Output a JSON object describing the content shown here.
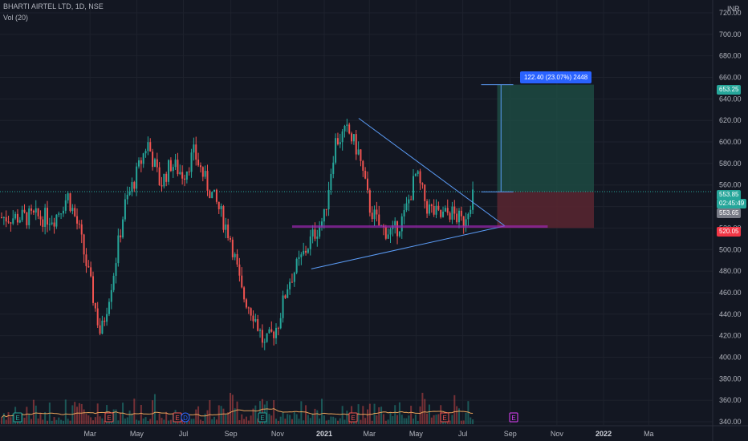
{
  "header": {
    "symbol": "BHARTI AIRTEL LTD, 1D, NSE",
    "indicator": "Vol (20)",
    "currency": "INR"
  },
  "price_axis": {
    "ticks": [
      "720.00",
      "700.00",
      "680.00",
      "660.00",
      "640.00",
      "620.00",
      "600.00",
      "580.00",
      "560.00",
      "540.00",
      "520.00",
      "500.00",
      "480.00",
      "460.00",
      "440.00",
      "420.00",
      "400.00",
      "380.00",
      "360.00",
      "340.00"
    ]
  },
  "time_axis": {
    "labels": [
      "Mar",
      "May",
      "Jul",
      "Sep",
      "Nov",
      "2021",
      "Mar",
      "May",
      "Jul",
      "Sep",
      "Nov",
      "2022",
      "Ma"
    ]
  },
  "badges": {
    "target_price": "653.25",
    "current_price": "553.85",
    "countdown": "02:45:49",
    "entry_price": "553.65",
    "stop_price": "520.05",
    "measure_tip": "122.40 (23.07%) 2448"
  },
  "event_markers": [
    "E",
    "E",
    "E",
    "D",
    "E",
    "E",
    "E",
    "E"
  ],
  "colors": {
    "background": "#131722",
    "up": "#26a69a",
    "down": "#ef5350",
    "target_zone": "#1e4d45",
    "stop_zone": "#5a2630",
    "line": "#2962ff"
  },
  "chart_data": {
    "type": "candlestick",
    "title": "BHARTI AIRTEL LTD, 1D, NSE",
    "ylim": [
      335,
      730
    ],
    "y_unit": "INR",
    "x_labels": [
      "Mar",
      "May",
      "Jul",
      "Sep",
      "Nov",
      "2021",
      "Mar",
      "May",
      "Jul",
      "Sep",
      "Nov",
      "2022",
      "Ma"
    ],
    "close_path": [
      [
        "2020-01-15",
        530
      ],
      [
        "2020-02-01",
        550
      ],
      [
        "2020-02-15",
        520
      ],
      [
        "2020-03-01",
        470
      ],
      [
        "2020-03-15",
        420
      ],
      [
        "2020-04-01",
        480
      ],
      [
        "2020-04-15",
        540
      ],
      [
        "2020-05-01",
        570
      ],
      [
        "2020-05-15",
        600
      ],
      [
        "2020-06-01",
        560
      ],
      [
        "2020-06-15",
        580
      ],
      [
        "2020-07-01",
        570
      ],
      [
        "2020-07-15",
        590
      ],
      [
        "2020-08-01",
        560
      ],
      [
        "2020-08-15",
        540
      ],
      [
        "2020-09-01",
        510
      ],
      [
        "2020-09-15",
        460
      ],
      [
        "2020-10-01",
        440
      ],
      [
        "2020-10-15",
        410
      ],
      [
        "2020-11-01",
        430
      ],
      [
        "2020-11-15",
        470
      ],
      [
        "2020-12-01",
        490
      ],
      [
        "2020-12-15",
        510
      ],
      [
        "2021-01-01",
        530
      ],
      [
        "2021-01-15",
        600
      ],
      [
        "2021-02-01",
        610
      ],
      [
        "2021-02-15",
        590
      ],
      [
        "2021-03-01",
        540
      ],
      [
        "2021-03-15",
        520
      ],
      [
        "2021-04-01",
        515
      ],
      [
        "2021-04-15",
        530
      ],
      [
        "2021-05-01",
        570
      ],
      [
        "2021-05-15",
        540
      ],
      [
        "2021-06-01",
        530
      ],
      [
        "2021-06-15",
        535
      ],
      [
        "2021-07-01",
        525
      ],
      [
        "2021-07-15",
        553.85
      ]
    ],
    "levels": {
      "target": 653.25,
      "entry": 553.65,
      "stop": 520.05,
      "current": 553.85
    },
    "measure": {
      "change": 122.4,
      "percent": "23.07%",
      "bars": 2448
    }
  }
}
